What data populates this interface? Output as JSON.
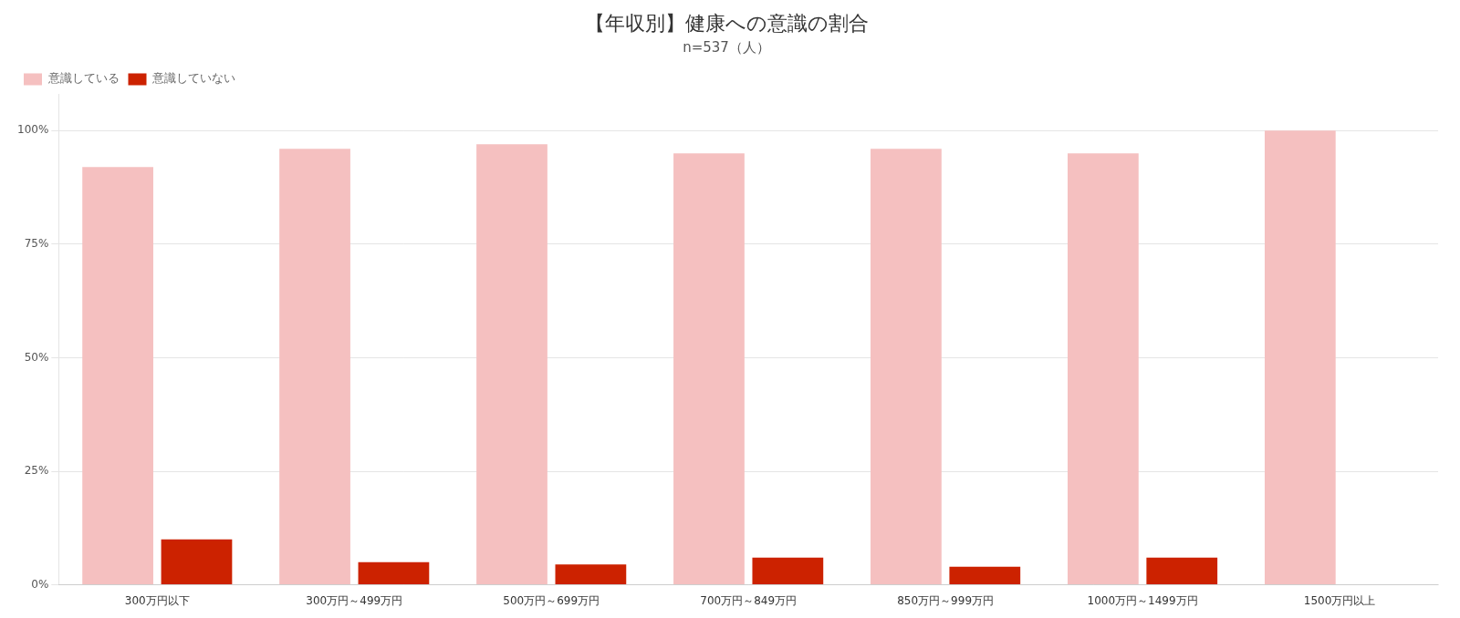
{
  "chart_data": {
    "type": "bar",
    "title": "【年収別】健康への意識の割合",
    "subtitle": "n=537（人）",
    "categories": [
      "300万円以下",
      "300万円～499万円",
      "500万円～699万円",
      "700万円～849万円",
      "850万円～999万円",
      "1000万円～1499万円",
      "1500万円以上"
    ],
    "series": [
      {
        "name": "意識している",
        "color": "#f5c0c0",
        "values": [
          92,
          96,
          97,
          95,
          96,
          95,
          100
        ]
      },
      {
        "name": "意識していない",
        "color": "#cc2200",
        "values": [
          10,
          5,
          4.5,
          6,
          4,
          6,
          0
        ]
      }
    ],
    "ylim": [
      0,
      108
    ],
    "yticks": [
      {
        "value": 0,
        "label": "0%"
      },
      {
        "value": 25,
        "label": "25%"
      },
      {
        "value": 50,
        "label": "50%"
      },
      {
        "value": 75,
        "label": "75%"
      },
      {
        "value": 100,
        "label": "100%"
      }
    ],
    "grid": true,
    "legend": "upper left"
  }
}
